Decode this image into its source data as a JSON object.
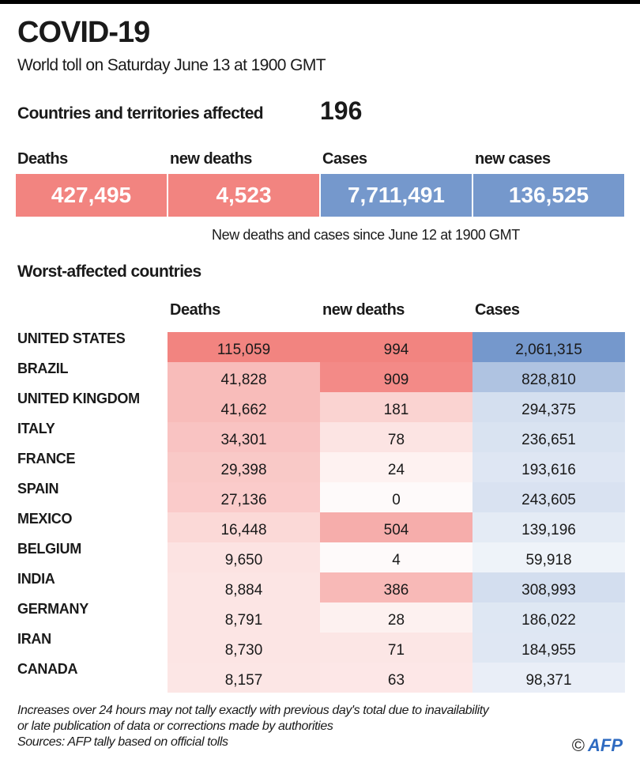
{
  "header": {
    "title": "COVID-19",
    "subtitle": "World toll on Saturday June 13 at 1900 GMT",
    "affected_label": "Countries and territories affected",
    "affected_value": "196"
  },
  "key_figures": [
    {
      "label": "Deaths",
      "value": "427,495",
      "color": "#f28480"
    },
    {
      "label": "new deaths",
      "value": "4,523",
      "color": "#f28480"
    },
    {
      "label": "Cases",
      "value": "7,711,491",
      "color": "#7598cc"
    },
    {
      "label": "new cases",
      "value": "136,525",
      "color": "#7598cc"
    }
  ],
  "note": "New  deaths and cases since June 12 at 1900 GMT",
  "section_title": "Worst-affected countries",
  "chart_data": {
    "type": "table",
    "title": "Worst-affected countries",
    "columns": [
      "Deaths",
      "new deaths",
      "Cases"
    ],
    "column_colors": [
      "#f28480",
      "#f28480",
      "#7598cc"
    ],
    "rows": [
      {
        "country": "UNITED STATES",
        "deaths": "115,059",
        "new_deaths": "994",
        "cases": "2,061,315"
      },
      {
        "country": "BRAZIL",
        "deaths": "41,828",
        "new_deaths": "909",
        "cases": "828,810"
      },
      {
        "country": "UNITED KINGDOM",
        "deaths": "41,662",
        "new_deaths": "181",
        "cases": "294,375"
      },
      {
        "country": "ITALY",
        "deaths": "34,301",
        "new_deaths": "78",
        "cases": "236,651"
      },
      {
        "country": "FRANCE",
        "deaths": "29,398",
        "new_deaths": "24",
        "cases": "193,616"
      },
      {
        "country": "SPAIN",
        "deaths": "27,136",
        "new_deaths": "0",
        "cases": "243,605"
      },
      {
        "country": "MEXICO",
        "deaths": "16,448",
        "new_deaths": "504",
        "cases": "139,196"
      },
      {
        "country": "BELGIUM",
        "deaths": "9,650",
        "new_deaths": "4",
        "cases": "59,918"
      },
      {
        "country": "INDIA",
        "deaths": "8,884",
        "new_deaths": "386",
        "cases": "308,993"
      },
      {
        "country": "GERMANY",
        "deaths": "8,791",
        "new_deaths": "28",
        "cases": "186,022"
      },
      {
        "country": "IRAN",
        "deaths": "8,730",
        "new_deaths": "71",
        "cases": "184,955"
      },
      {
        "country": "CANADA",
        "deaths": "8,157",
        "new_deaths": "63",
        "cases": "98,371"
      }
    ]
  },
  "footer": {
    "lines": [
      "Increases over 24 hours may not tally exactly with previous day's total due to inavailability",
      "or late publication of data or corrections made by authorities",
      "Sources: AFP tally based on official tolls"
    ],
    "copyright": "©",
    "logo": "AFP"
  }
}
